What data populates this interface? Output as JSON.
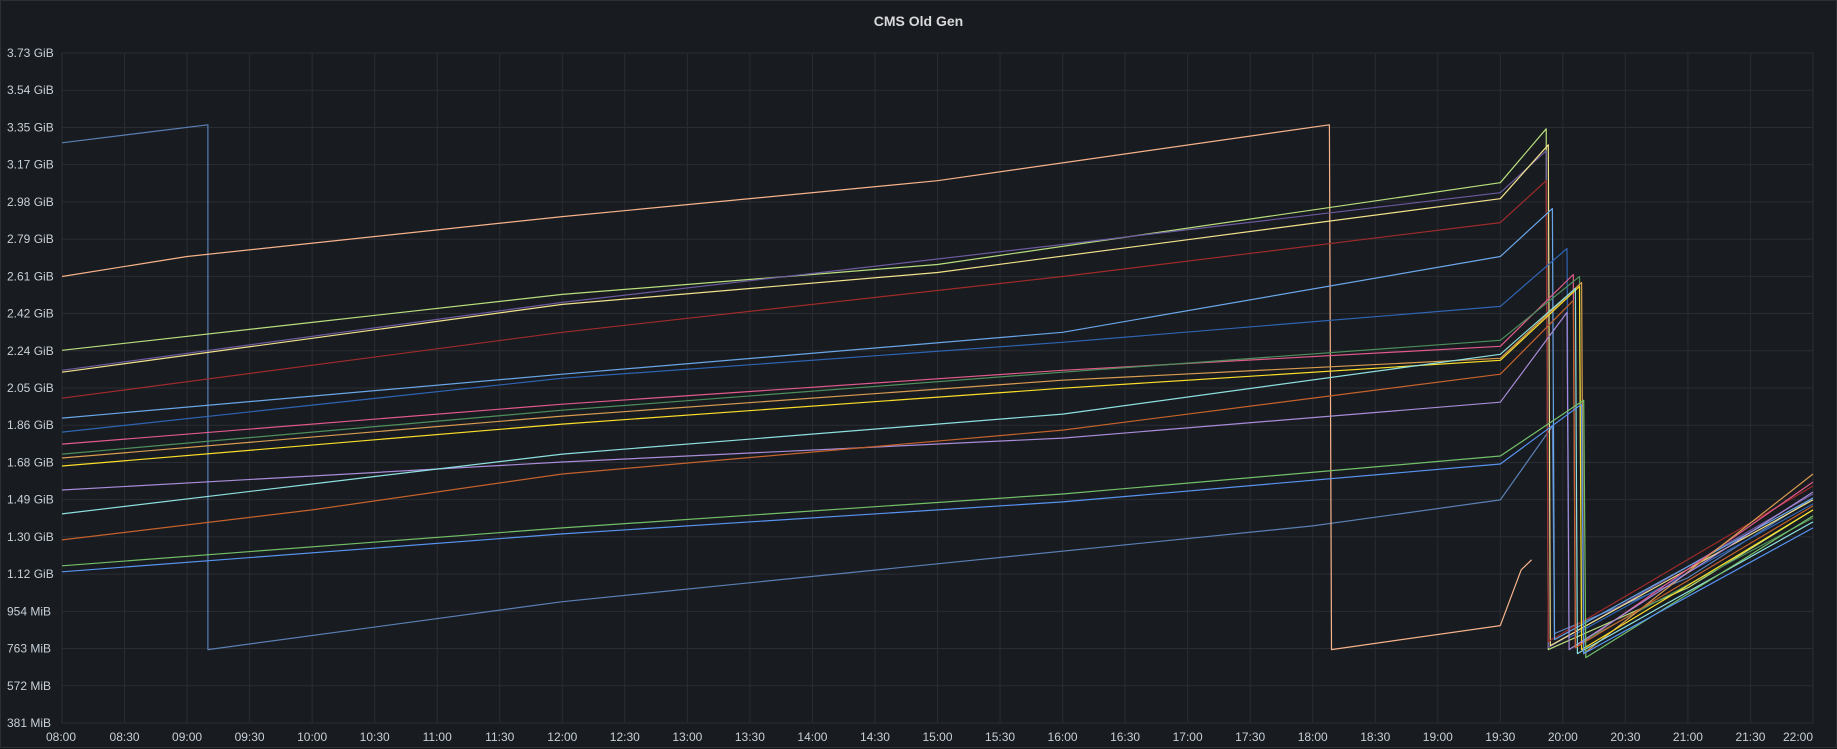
{
  "panel": {
    "title": "CMS Old Gen"
  },
  "chart_data": {
    "type": "line",
    "title": "CMS Old Gen",
    "xlabel": "",
    "ylabel": "",
    "x_range": [
      "08:00",
      "22:00"
    ],
    "y_range_gib": [
      0.3721,
      3.73
    ],
    "grid": true,
    "legend": "none",
    "y_ticks": [
      "381 MiB",
      "572 MiB",
      "763 MiB",
      "954 MiB",
      "1.12 GiB",
      "1.30 GiB",
      "1.49 GiB",
      "1.68 GiB",
      "1.86 GiB",
      "2.05 GiB",
      "2.24 GiB",
      "2.42 GiB",
      "2.61 GiB",
      "2.79 GiB",
      "2.98 GiB",
      "3.17 GiB",
      "3.35 GiB",
      "3.54 GiB",
      "3.73 GiB"
    ],
    "x_ticks": [
      "08:00",
      "08:30",
      "09:00",
      "09:30",
      "10:00",
      "10:30",
      "11:00",
      "11:30",
      "12:00",
      "12:30",
      "13:00",
      "13:30",
      "14:00",
      "14:30",
      "15:00",
      "15:30",
      "16:00",
      "16:30",
      "17:00",
      "17:30",
      "18:00",
      "18:30",
      "19:00",
      "19:30",
      "20:00",
      "20:30",
      "21:00",
      "21:30",
      "22:00"
    ],
    "series": [
      {
        "color": "#5a7fb5",
        "points": [
          [
            "08:00",
            3.28
          ],
          [
            "09:10",
            3.37
          ],
          [
            "09:10",
            0.74
          ],
          [
            "12:00",
            0.98
          ],
          [
            "15:00",
            1.17
          ],
          [
            "18:00",
            1.36
          ],
          [
            "19:30",
            1.49
          ],
          [
            "19:55",
            1.86
          ],
          [
            "19:56",
            0.82
          ],
          [
            "21:00",
            1.1
          ],
          [
            "22:00",
            1.5
          ]
        ]
      },
      {
        "color": "#f7b38b",
        "points": [
          [
            "08:00",
            2.61
          ],
          [
            "09:00",
            2.71
          ],
          [
            "12:00",
            2.91
          ],
          [
            "15:00",
            3.09
          ],
          [
            "18:08",
            3.37
          ],
          [
            "18:09",
            0.74
          ],
          [
            "19:30",
            0.86
          ],
          [
            "19:40",
            1.14
          ],
          [
            "19:45",
            1.19
          ]
        ]
      },
      {
        "color": "#b8de7e",
        "points": [
          [
            "08:00",
            2.24
          ],
          [
            "10:00",
            2.38
          ],
          [
            "12:00",
            2.52
          ],
          [
            "15:00",
            2.67
          ],
          [
            "19:30",
            3.08
          ],
          [
            "19:52",
            3.35
          ],
          [
            "19:53",
            0.74
          ],
          [
            "21:00",
            1.05
          ],
          [
            "22:00",
            1.44
          ]
        ]
      },
      {
        "color": "#6b5a9e",
        "points": [
          [
            "08:00",
            2.14
          ],
          [
            "12:00",
            2.48
          ],
          [
            "16:00",
            2.77
          ],
          [
            "19:30",
            3.03
          ],
          [
            "19:52",
            3.24
          ],
          [
            "19:53",
            0.75
          ],
          [
            "22:00",
            1.52
          ]
        ]
      },
      {
        "color": "#f2e28c",
        "points": [
          [
            "08:00",
            2.13
          ],
          [
            "10:00",
            2.3
          ],
          [
            "12:00",
            2.47
          ],
          [
            "15:00",
            2.63
          ],
          [
            "19:30",
            3.0
          ],
          [
            "19:53",
            3.27
          ],
          [
            "19:54",
            0.76
          ],
          [
            "22:00",
            1.49
          ]
        ]
      },
      {
        "color": "#9e2b2b",
        "points": [
          [
            "08:00",
            2.0
          ],
          [
            "12:00",
            2.33
          ],
          [
            "16:00",
            2.61
          ],
          [
            "19:30",
            2.88
          ],
          [
            "19:52",
            3.09
          ],
          [
            "19:53",
            0.78
          ],
          [
            "22:00",
            1.56
          ]
        ]
      },
      {
        "color": "#6aa6e8",
        "points": [
          [
            "08:00",
            1.9
          ],
          [
            "12:00",
            2.12
          ],
          [
            "16:00",
            2.33
          ],
          [
            "19:30",
            2.71
          ],
          [
            "19:55",
            2.95
          ],
          [
            "19:56",
            0.79
          ],
          [
            "22:00",
            1.5
          ]
        ]
      },
      {
        "color": "#2f64b3",
        "points": [
          [
            "08:00",
            1.83
          ],
          [
            "12:00",
            2.1
          ],
          [
            "16:00",
            2.28
          ],
          [
            "19:30",
            2.46
          ],
          [
            "20:02",
            2.75
          ],
          [
            "20:03",
            0.8
          ],
          [
            "22:00",
            1.47
          ]
        ]
      },
      {
        "color": "#e05a8b",
        "points": [
          [
            "08:00",
            1.77
          ],
          [
            "12:00",
            1.97
          ],
          [
            "16:00",
            2.14
          ],
          [
            "19:30",
            2.26
          ],
          [
            "20:05",
            2.62
          ],
          [
            "20:06",
            0.75
          ],
          [
            "22:00",
            1.58
          ]
        ]
      },
      {
        "color": "#4e8f5c",
        "points": [
          [
            "08:00",
            1.72
          ],
          [
            "12:00",
            1.94
          ],
          [
            "16:00",
            2.13
          ],
          [
            "19:30",
            2.29
          ],
          [
            "20:08",
            2.61
          ],
          [
            "20:09",
            0.78
          ],
          [
            "22:00",
            1.4
          ]
        ]
      },
      {
        "color": "#d89c50",
        "points": [
          [
            "08:00",
            1.7
          ],
          [
            "12:00",
            1.91
          ],
          [
            "16:00",
            2.09
          ],
          [
            "19:30",
            2.2
          ],
          [
            "20:09",
            2.58
          ],
          [
            "20:10",
            0.72
          ],
          [
            "22:00",
            1.62
          ]
        ]
      },
      {
        "color": "#fade2a",
        "points": [
          [
            "08:00",
            1.66
          ],
          [
            "12:00",
            1.87
          ],
          [
            "16:00",
            2.05
          ],
          [
            "19:30",
            2.19
          ],
          [
            "20:08",
            2.56
          ],
          [
            "20:09",
            0.74
          ],
          [
            "22:00",
            1.44
          ]
        ]
      },
      {
        "color": "#a88cd8",
        "points": [
          [
            "08:00",
            1.54
          ],
          [
            "12:00",
            1.68
          ],
          [
            "16:00",
            1.8
          ],
          [
            "19:30",
            1.98
          ],
          [
            "20:02",
            2.43
          ],
          [
            "20:03",
            0.74
          ],
          [
            "22:00",
            1.53
          ]
        ]
      },
      {
        "color": "#8ee0e0",
        "points": [
          [
            "08:00",
            1.42
          ],
          [
            "10:00",
            1.57
          ],
          [
            "12:00",
            1.72
          ],
          [
            "16:00",
            1.92
          ],
          [
            "19:30",
            2.22
          ],
          [
            "20:06",
            2.55
          ],
          [
            "20:07",
            0.72
          ],
          [
            "22:00",
            1.38
          ]
        ]
      },
      {
        "color": "#c4622d",
        "points": [
          [
            "08:00",
            1.29
          ],
          [
            "10:00",
            1.44
          ],
          [
            "12:00",
            1.62
          ],
          [
            "16:00",
            1.84
          ],
          [
            "19:30",
            2.12
          ],
          [
            "20:05",
            2.49
          ],
          [
            "20:06",
            0.75
          ],
          [
            "22:00",
            1.46
          ]
        ]
      },
      {
        "color": "#73bf69",
        "points": [
          [
            "08:00",
            1.16
          ],
          [
            "12:00",
            1.35
          ],
          [
            "16:00",
            1.52
          ],
          [
            "19:30",
            1.71
          ],
          [
            "20:10",
            1.99
          ],
          [
            "20:11",
            0.7
          ],
          [
            "22:00",
            1.41
          ]
        ]
      },
      {
        "color": "#5794f2",
        "points": [
          [
            "08:00",
            1.13
          ],
          [
            "12:00",
            1.32
          ],
          [
            "16:00",
            1.48
          ],
          [
            "19:30",
            1.67
          ],
          [
            "20:09",
            1.97
          ],
          [
            "20:10",
            0.72
          ],
          [
            "22:00",
            1.35
          ]
        ]
      }
    ]
  }
}
